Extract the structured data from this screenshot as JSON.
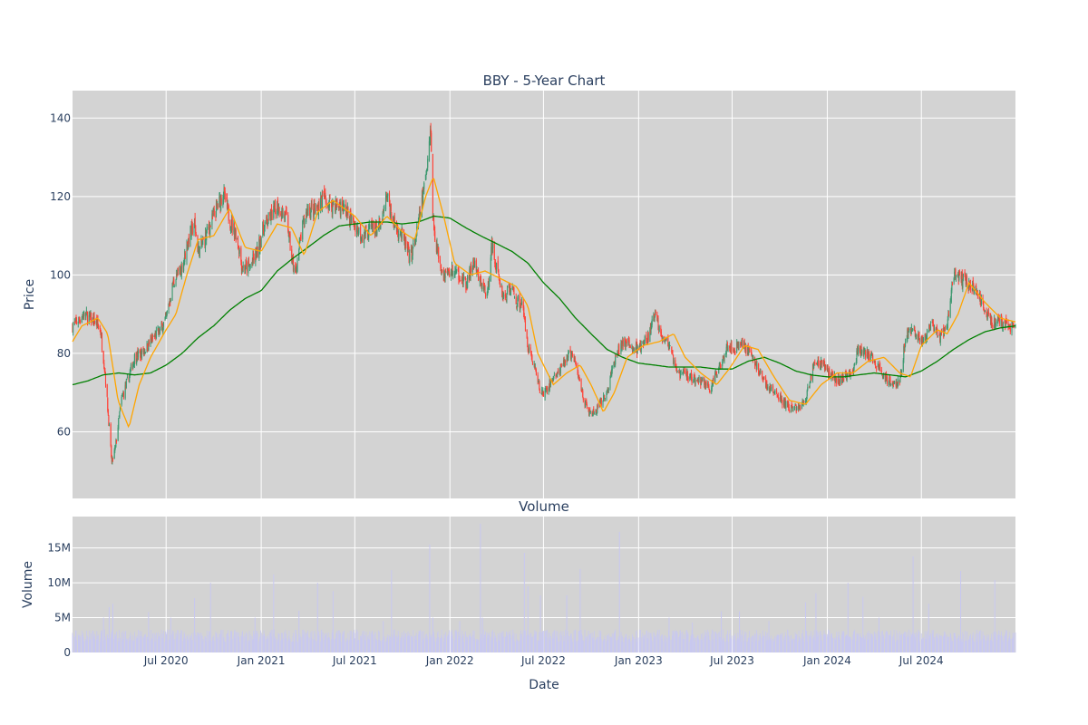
{
  "chart_data": [
    {
      "type": "candlestick",
      "title": "BBY - 5-Year Chart",
      "ylabel": "Price",
      "xlabel": "",
      "ylim": [
        43,
        147
      ],
      "yticks": [
        60,
        80,
        100,
        120,
        140
      ],
      "xlim": [
        "2020-01-02",
        "2024-12-30"
      ],
      "xticks": [
        {
          "date": "2020-07-01",
          "label": "Jul 2020"
        },
        {
          "date": "2021-01-01",
          "label": "Jan 2021"
        },
        {
          "date": "2021-07-01",
          "label": "Jul 2021"
        },
        {
          "date": "2022-01-01",
          "label": "Jan 2022"
        },
        {
          "date": "2022-07-01",
          "label": "Jul 2022"
        },
        {
          "date": "2023-01-01",
          "label": "Jan 2023"
        },
        {
          "date": "2023-07-01",
          "label": "Jul 2023"
        },
        {
          "date": "2024-01-01",
          "label": "Jan 2024"
        },
        {
          "date": "2024-07-01",
          "label": "Jul 2024"
        }
      ],
      "grid": true,
      "legend": "none",
      "colors": {
        "increasing": "#3d9970",
        "decreasing": "#ff4136",
        "ma_short": "#ffa500",
        "ma_long": "#008000",
        "plot_bg": "#d3d3d3",
        "grid": "#ffffff"
      },
      "close_anchors": [
        [
          "2020-01-02",
          87
        ],
        [
          "2020-01-25",
          90
        ],
        [
          "2020-02-15",
          88
        ],
        [
          "2020-02-25",
          86
        ],
        [
          "2020-03-05",
          75
        ],
        [
          "2020-03-18",
          52
        ],
        [
          "2020-03-25",
          56
        ],
        [
          "2020-04-05",
          68
        ],
        [
          "2020-04-20",
          74
        ],
        [
          "2020-05-01",
          79
        ],
        [
          "2020-05-15",
          80
        ],
        [
          "2020-06-01",
          83
        ],
        [
          "2020-06-20",
          86
        ],
        [
          "2020-07-01",
          89
        ],
        [
          "2020-07-15",
          98
        ],
        [
          "2020-08-01",
          102
        ],
        [
          "2020-08-15",
          110
        ],
        [
          "2020-08-25",
          113
        ],
        [
          "2020-09-01",
          106
        ],
        [
          "2020-09-10",
          108
        ],
        [
          "2020-10-01",
          115
        ],
        [
          "2020-10-20",
          121
        ],
        [
          "2020-11-01",
          114
        ],
        [
          "2020-11-15",
          110
        ],
        [
          "2020-11-25",
          102
        ],
        [
          "2020-12-10",
          102
        ],
        [
          "2020-12-25",
          106
        ],
        [
          "2021-01-05",
          112
        ],
        [
          "2021-01-20",
          115
        ],
        [
          "2021-02-01",
          118
        ],
        [
          "2021-02-20",
          114
        ],
        [
          "2021-03-01",
          104
        ],
        [
          "2021-03-08",
          100
        ],
        [
          "2021-03-20",
          111
        ],
        [
          "2021-04-01",
          117
        ],
        [
          "2021-04-15",
          116
        ],
        [
          "2021-05-01",
          120
        ],
        [
          "2021-05-10",
          118
        ],
        [
          "2021-05-25",
          118
        ],
        [
          "2021-06-10",
          117
        ],
        [
          "2021-06-25",
          114
        ],
        [
          "2021-07-15",
          110
        ],
        [
          "2021-08-01",
          112
        ],
        [
          "2021-08-20",
          112
        ],
        [
          "2021-09-01",
          120
        ],
        [
          "2021-09-15",
          113
        ],
        [
          "2021-10-01",
          110
        ],
        [
          "2021-10-15",
          104
        ],
        [
          "2021-10-25",
          108
        ],
        [
          "2021-11-05",
          116
        ],
        [
          "2021-11-15",
          125
        ],
        [
          "2021-11-22",
          134
        ],
        [
          "2021-11-25",
          138
        ],
        [
          "2021-11-28",
          116
        ],
        [
          "2021-12-05",
          108
        ],
        [
          "2021-12-20",
          100
        ],
        [
          "2022-01-05",
          101
        ],
        [
          "2022-01-20",
          100
        ],
        [
          "2022-02-01",
          97
        ],
        [
          "2022-02-15",
          103
        ],
        [
          "2022-03-01",
          98
        ],
        [
          "2022-03-15",
          95
        ],
        [
          "2022-03-22",
          108
        ],
        [
          "2022-04-01",
          102
        ],
        [
          "2022-04-15",
          94
        ],
        [
          "2022-04-30",
          97
        ],
        [
          "2022-05-10",
          93
        ],
        [
          "2022-05-20",
          93
        ],
        [
          "2022-06-01",
          82
        ],
        [
          "2022-06-15",
          76
        ],
        [
          "2022-06-25",
          70
        ],
        [
          "2022-07-05",
          70
        ],
        [
          "2022-07-20",
          74
        ],
        [
          "2022-08-01",
          75
        ],
        [
          "2022-08-15",
          79
        ],
        [
          "2022-08-25",
          80
        ],
        [
          "2022-09-05",
          75
        ],
        [
          "2022-09-20",
          67
        ],
        [
          "2022-10-01",
          64
        ],
        [
          "2022-10-15",
          66
        ],
        [
          "2022-11-01",
          70
        ],
        [
          "2022-11-15",
          78
        ],
        [
          "2022-12-01",
          83
        ],
        [
          "2022-12-15",
          82
        ],
        [
          "2023-01-01",
          81
        ],
        [
          "2023-01-20",
          84
        ],
        [
          "2023-02-01",
          90
        ],
        [
          "2023-02-15",
          85
        ],
        [
          "2023-03-01",
          82
        ],
        [
          "2023-03-15",
          75
        ],
        [
          "2023-04-01",
          75
        ],
        [
          "2023-04-20",
          73
        ],
        [
          "2023-05-05",
          73
        ],
        [
          "2023-05-20",
          71
        ],
        [
          "2023-06-05",
          76
        ],
        [
          "2023-06-20",
          82
        ],
        [
          "2023-07-05",
          81
        ],
        [
          "2023-07-20",
          83
        ],
        [
          "2023-08-05",
          80
        ],
        [
          "2023-08-20",
          76
        ],
        [
          "2023-09-05",
          72
        ],
        [
          "2023-09-20",
          70
        ],
        [
          "2023-10-05",
          68
        ],
        [
          "2023-10-20",
          66
        ],
        [
          "2023-11-05",
          66
        ],
        [
          "2023-11-20",
          68
        ],
        [
          "2023-12-05",
          77
        ],
        [
          "2023-12-20",
          78
        ],
        [
          "2024-01-05",
          75
        ],
        [
          "2024-01-20",
          73
        ],
        [
          "2024-02-05",
          74
        ],
        [
          "2024-02-20",
          76
        ],
        [
          "2024-03-01",
          81
        ],
        [
          "2024-03-15",
          80
        ],
        [
          "2024-04-01",
          78
        ],
        [
          "2024-04-20",
          74
        ],
        [
          "2024-05-05",
          73
        ],
        [
          "2024-05-20",
          72
        ],
        [
          "2024-06-01",
          85
        ],
        [
          "2024-06-15",
          86
        ],
        [
          "2024-06-25",
          84
        ],
        [
          "2024-07-05",
          83
        ],
        [
          "2024-07-20",
          87
        ],
        [
          "2024-08-05",
          84
        ],
        [
          "2024-08-20",
          87
        ],
        [
          "2024-09-01",
          100
        ],
        [
          "2024-09-15",
          99
        ],
        [
          "2024-10-01",
          98
        ],
        [
          "2024-10-20",
          95
        ],
        [
          "2024-11-01",
          91
        ],
        [
          "2024-11-15",
          88
        ],
        [
          "2024-12-01",
          88
        ],
        [
          "2024-12-30",
          86
        ]
      ],
      "ma_short_anchors": [
        [
          "2020-01-02",
          83
        ],
        [
          "2020-01-20",
          87
        ],
        [
          "2020-02-20",
          89
        ],
        [
          "2020-03-10",
          85
        ],
        [
          "2020-03-30",
          68
        ],
        [
          "2020-04-20",
          61
        ],
        [
          "2020-05-10",
          72
        ],
        [
          "2020-06-01",
          79
        ],
        [
          "2020-07-01",
          86
        ],
        [
          "2020-07-20",
          90
        ],
        [
          "2020-08-10",
          100
        ],
        [
          "2020-09-01",
          109
        ],
        [
          "2020-10-01",
          110
        ],
        [
          "2020-11-01",
          117
        ],
        [
          "2020-12-01",
          107
        ],
        [
          "2021-01-01",
          106
        ],
        [
          "2021-02-01",
          113
        ],
        [
          "2021-03-01",
          112
        ],
        [
          "2021-03-25",
          105
        ],
        [
          "2021-04-20",
          116
        ],
        [
          "2021-05-20",
          119
        ],
        [
          "2021-07-01",
          115
        ],
        [
          "2021-08-01",
          110
        ],
        [
          "2021-09-01",
          115
        ],
        [
          "2021-10-01",
          111
        ],
        [
          "2021-10-25",
          109
        ],
        [
          "2021-11-15",
          120
        ],
        [
          "2021-11-30",
          125
        ],
        [
          "2021-12-20",
          115
        ],
        [
          "2022-01-10",
          103
        ],
        [
          "2022-02-10",
          100
        ],
        [
          "2022-03-10",
          101
        ],
        [
          "2022-04-10",
          99
        ],
        [
          "2022-05-10",
          97
        ],
        [
          "2022-06-01",
          92
        ],
        [
          "2022-06-20",
          80
        ],
        [
          "2022-07-20",
          72
        ],
        [
          "2022-08-15",
          75
        ],
        [
          "2022-09-10",
          77
        ],
        [
          "2022-10-01",
          72
        ],
        [
          "2022-10-25",
          65
        ],
        [
          "2022-11-15",
          70
        ],
        [
          "2022-12-10",
          79
        ],
        [
          "2023-01-10",
          82
        ],
        [
          "2023-02-10",
          83
        ],
        [
          "2023-03-10",
          85
        ],
        [
          "2023-04-01",
          79
        ],
        [
          "2023-05-01",
          75
        ],
        [
          "2023-06-01",
          72
        ],
        [
          "2023-06-25",
          76
        ],
        [
          "2023-07-25",
          82
        ],
        [
          "2023-08-20",
          81
        ],
        [
          "2023-09-20",
          74
        ],
        [
          "2023-10-20",
          68
        ],
        [
          "2023-11-20",
          67
        ],
        [
          "2023-12-20",
          72
        ],
        [
          "2024-01-20",
          75
        ],
        [
          "2024-02-20",
          75
        ],
        [
          "2024-03-20",
          78
        ],
        [
          "2024-04-20",
          79
        ],
        [
          "2024-05-20",
          75
        ],
        [
          "2024-06-10",
          74
        ],
        [
          "2024-07-01",
          82
        ],
        [
          "2024-08-01",
          86
        ],
        [
          "2024-08-20",
          85
        ],
        [
          "2024-09-10",
          90
        ],
        [
          "2024-10-01",
          98
        ],
        [
          "2024-11-01",
          93
        ],
        [
          "2024-12-01",
          89
        ],
        [
          "2024-12-30",
          88
        ]
      ],
      "ma_long_anchors": [
        [
          "2020-01-02",
          72
        ],
        [
          "2020-02-01",
          73
        ],
        [
          "2020-03-01",
          74.5
        ],
        [
          "2020-04-01",
          75
        ],
        [
          "2020-05-01",
          74.5
        ],
        [
          "2020-06-01",
          75
        ],
        [
          "2020-07-01",
          77
        ],
        [
          "2020-08-01",
          80
        ],
        [
          "2020-09-01",
          84
        ],
        [
          "2020-10-01",
          87
        ],
        [
          "2020-11-01",
          91
        ],
        [
          "2020-12-01",
          94
        ],
        [
          "2021-01-01",
          96
        ],
        [
          "2021-02-01",
          101
        ],
        [
          "2021-03-01",
          104
        ],
        [
          "2021-04-01",
          107
        ],
        [
          "2021-05-01",
          110
        ],
        [
          "2021-06-01",
          112.5
        ],
        [
          "2021-07-01",
          113
        ],
        [
          "2021-08-01",
          113.5
        ],
        [
          "2021-09-01",
          113.5
        ],
        [
          "2021-10-01",
          113
        ],
        [
          "2021-11-01",
          113.5
        ],
        [
          "2021-12-01",
          115
        ],
        [
          "2022-01-01",
          114.5
        ],
        [
          "2022-02-01",
          112
        ],
        [
          "2022-03-01",
          110
        ],
        [
          "2022-04-01",
          108
        ],
        [
          "2022-05-01",
          106
        ],
        [
          "2022-06-01",
          103
        ],
        [
          "2022-07-01",
          98
        ],
        [
          "2022-08-01",
          94
        ],
        [
          "2022-09-01",
          89
        ],
        [
          "2022-10-01",
          85
        ],
        [
          "2022-11-01",
          81
        ],
        [
          "2022-12-01",
          79
        ],
        [
          "2023-01-01",
          77.5
        ],
        [
          "2023-02-01",
          77
        ],
        [
          "2023-03-01",
          76.5
        ],
        [
          "2023-04-01",
          76.5
        ],
        [
          "2023-05-01",
          76.5
        ],
        [
          "2023-06-01",
          76
        ],
        [
          "2023-07-01",
          76
        ],
        [
          "2023-08-01",
          78
        ],
        [
          "2023-09-01",
          79
        ],
        [
          "2023-10-01",
          77.5
        ],
        [
          "2023-11-01",
          75.5
        ],
        [
          "2023-12-01",
          74.5
        ],
        [
          "2024-01-01",
          74
        ],
        [
          "2024-02-01",
          74
        ],
        [
          "2024-03-01",
          74.5
        ],
        [
          "2024-04-01",
          75
        ],
        [
          "2024-05-01",
          74.5
        ],
        [
          "2024-06-01",
          74
        ],
        [
          "2024-07-01",
          75.5
        ],
        [
          "2024-08-01",
          78
        ],
        [
          "2024-09-01",
          81
        ],
        [
          "2024-10-01",
          83.5
        ],
        [
          "2024-11-01",
          85.5
        ],
        [
          "2024-12-01",
          86.5
        ],
        [
          "2024-12-30",
          87
        ]
      ]
    },
    {
      "type": "bar",
      "title": "Volume",
      "xlabel": "Date",
      "ylabel": "Volume",
      "ylim": [
        0,
        19500000
      ],
      "yticks": [
        {
          "value": 0,
          "label": "0"
        },
        {
          "value": 5000000,
          "label": "5M"
        },
        {
          "value": 10000000,
          "label": "10M"
        },
        {
          "value": 15000000,
          "label": "15M"
        }
      ],
      "color": "#c8c8f0",
      "baseline": 2200000,
      "spikes": [
        [
          "2020-03-02",
          5000000
        ],
        [
          "2020-03-13",
          6500000
        ],
        [
          "2020-03-20",
          7000000
        ],
        [
          "2020-05-28",
          5800000
        ],
        [
          "2020-07-10",
          5000000
        ],
        [
          "2020-08-25",
          7800000
        ],
        [
          "2020-09-25",
          10000000
        ],
        [
          "2020-12-20",
          5000000
        ],
        [
          "2021-01-25",
          11200000
        ],
        [
          "2021-03-15",
          6000000
        ],
        [
          "2021-04-20",
          10000000
        ],
        [
          "2021-05-20",
          8800000
        ],
        [
          "2021-08-25",
          4500000
        ],
        [
          "2021-09-10",
          11800000
        ],
        [
          "2021-11-23",
          15500000
        ],
        [
          "2021-11-29",
          5000000
        ],
        [
          "2022-01-20",
          4500000
        ],
        [
          "2022-03-01",
          18500000
        ],
        [
          "2022-03-05",
          5000000
        ],
        [
          "2022-05-25",
          14300000
        ],
        [
          "2022-06-01",
          9500000
        ],
        [
          "2022-06-25",
          8200000
        ],
        [
          "2022-08-15",
          8200000
        ],
        [
          "2022-09-10",
          12000000
        ],
        [
          "2022-11-25",
          17300000
        ],
        [
          "2023-03-01",
          5000000
        ],
        [
          "2023-04-15",
          4300000
        ],
        [
          "2023-06-10",
          5900000
        ],
        [
          "2023-07-15",
          5900000
        ],
        [
          "2023-09-10",
          4500000
        ],
        [
          "2023-11-20",
          7200000
        ],
        [
          "2023-12-10",
          8500000
        ],
        [
          "2024-02-10",
          10000000
        ],
        [
          "2024-03-10",
          8000000
        ],
        [
          "2024-04-10",
          5000000
        ],
        [
          "2024-06-15",
          13800000
        ],
        [
          "2024-07-15",
          7000000
        ],
        [
          "2024-09-15",
          11700000
        ],
        [
          "2024-11-20",
          10400000
        ]
      ]
    }
  ]
}
